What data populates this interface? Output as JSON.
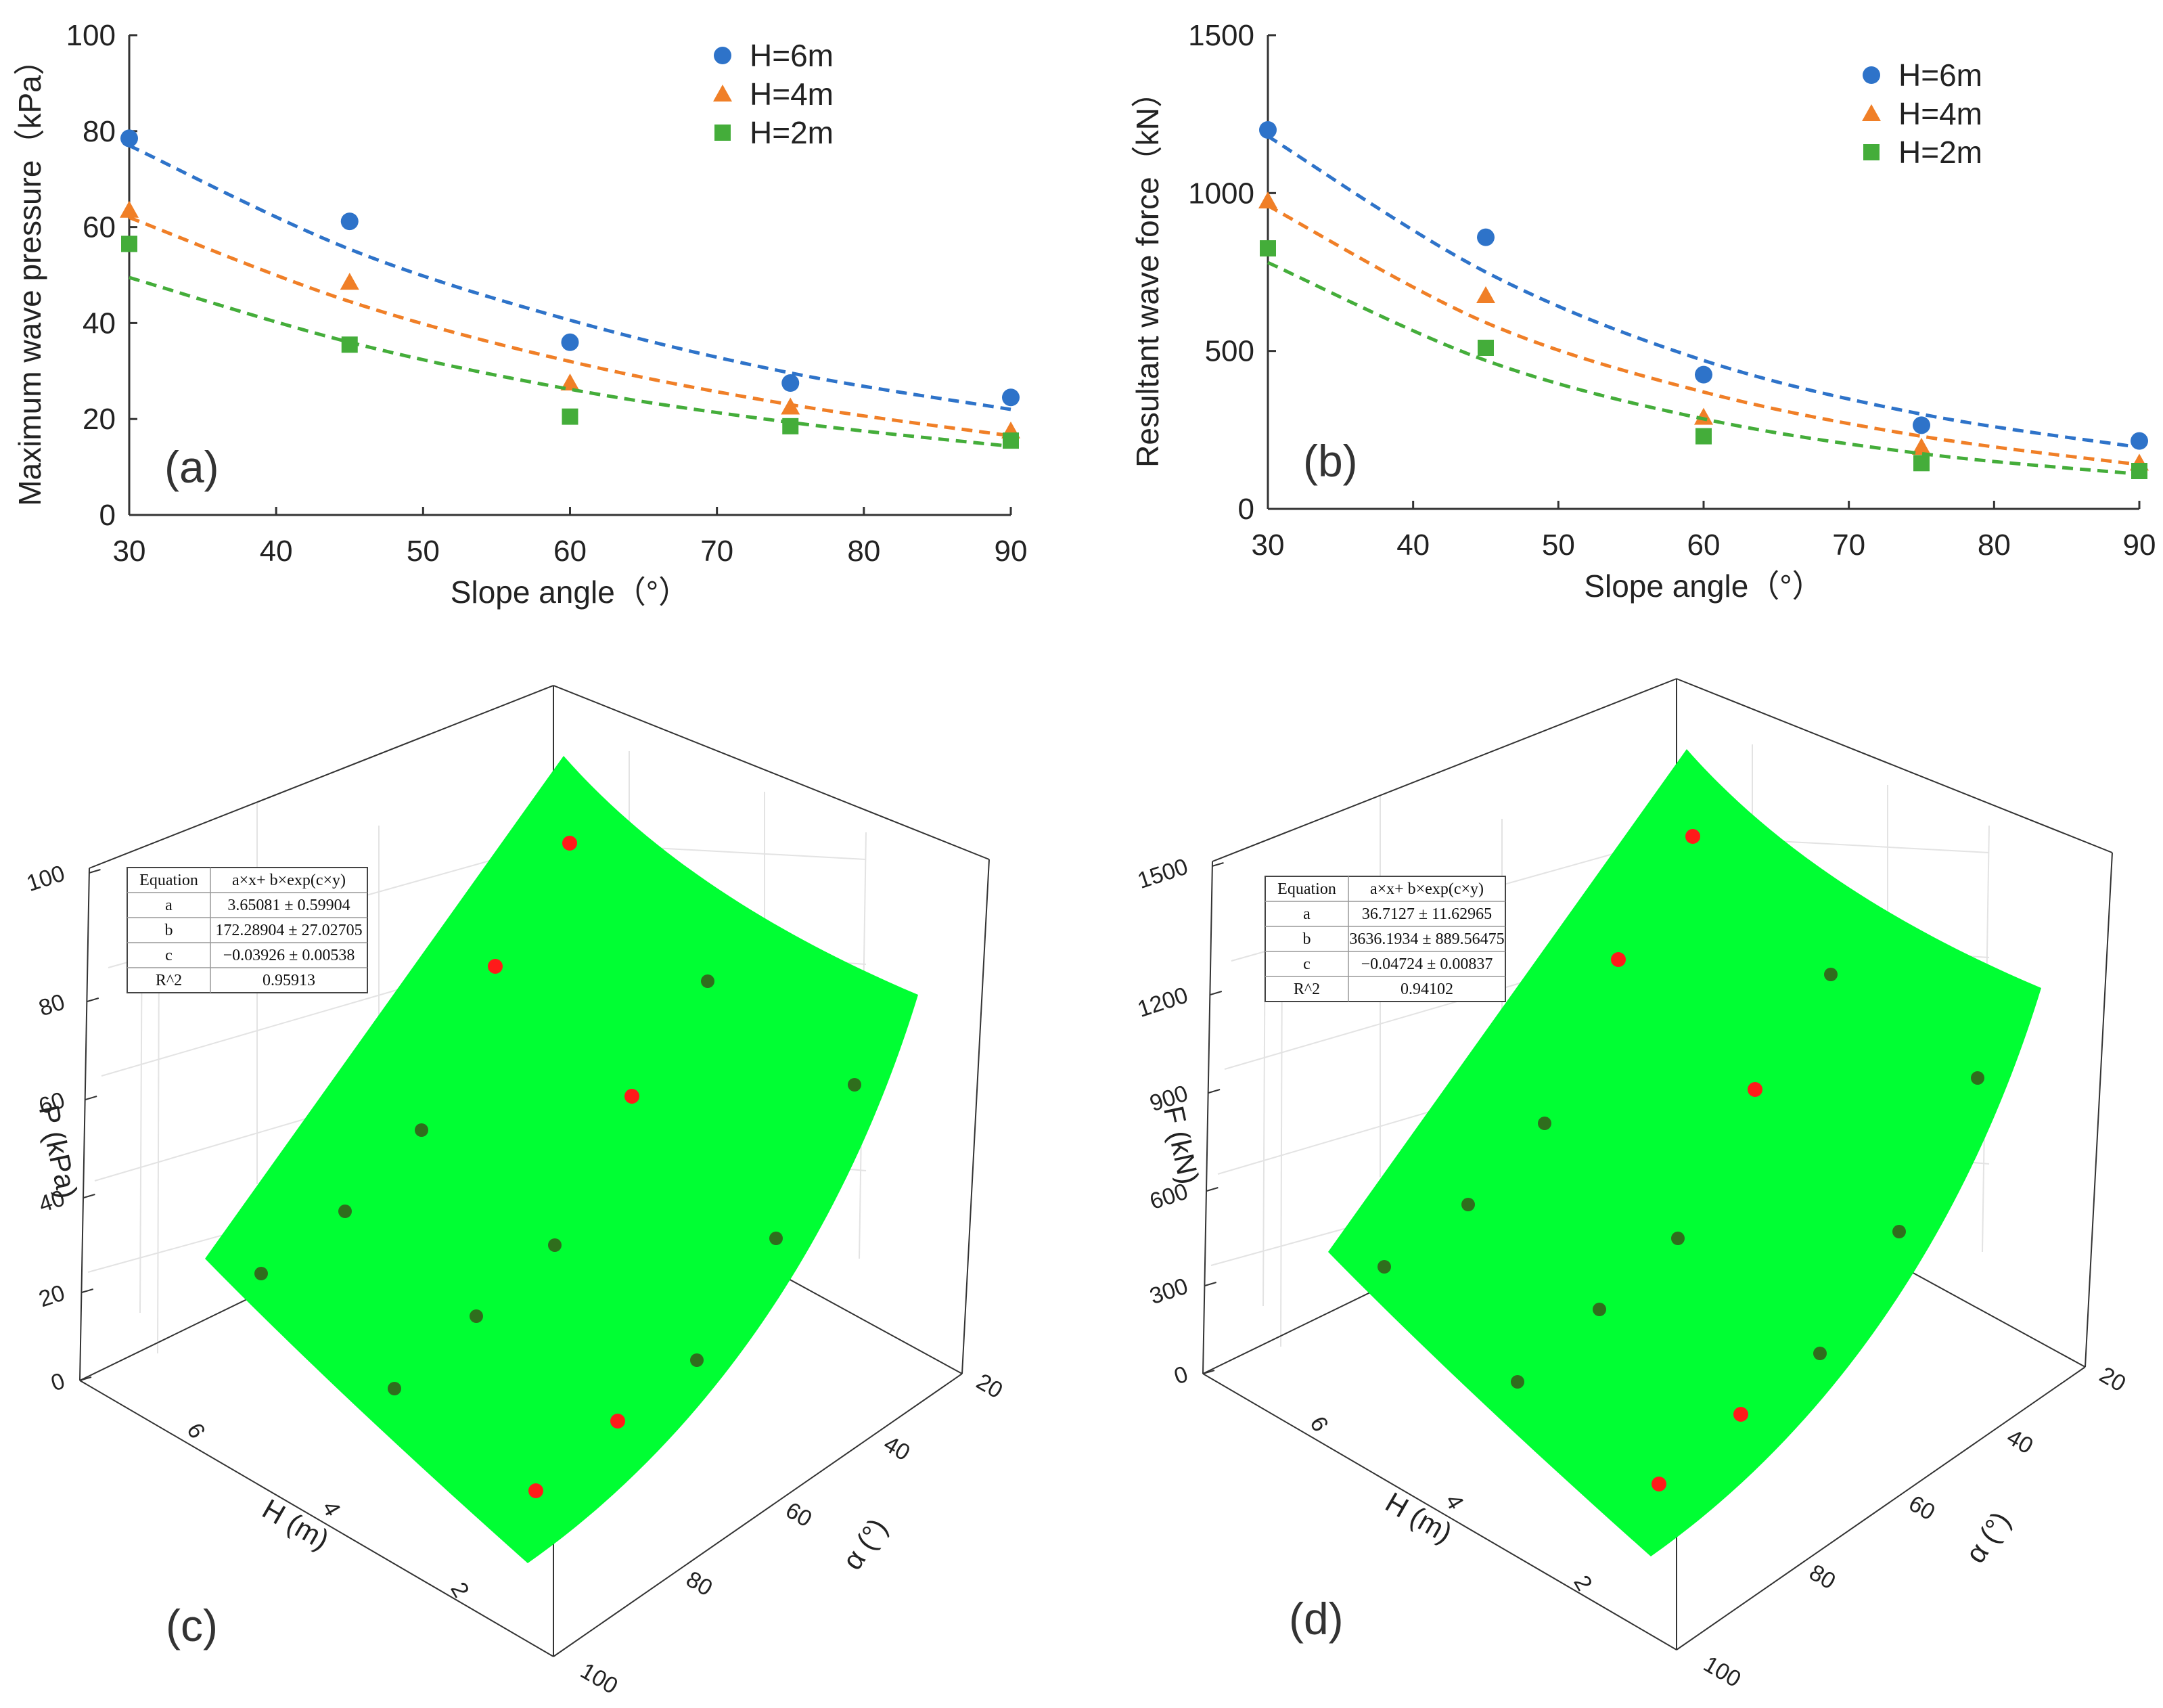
{
  "chart_data": [
    {
      "panel": "(a)",
      "type": "scatter",
      "xlabel": "Slope angle（°）",
      "ylabel": "Maximum wave pressure（kPa）",
      "xlim": [
        30,
        90
      ],
      "ylim": [
        0,
        100
      ],
      "xticks": [
        30,
        40,
        50,
        60,
        70,
        80,
        90
      ],
      "yticks": [
        0,
        20,
        40,
        60,
        80,
        100
      ],
      "fit": {
        "model": "exponential",
        "style": "dashed"
      },
      "series": [
        {
          "name": "H=6m",
          "marker": "circle",
          "color": "#2e73c9",
          "x": [
            30,
            45,
            60,
            75,
            90
          ],
          "y": [
            78.5,
            61.2,
            36.0,
            27.5,
            24.5
          ],
          "fit_y": [
            77,
            55.4,
            40.6,
            29.6,
            22
          ]
        },
        {
          "name": "H=4m",
          "marker": "triangle",
          "color": "#f07f27",
          "x": [
            30,
            45,
            60,
            75,
            90
          ],
          "y": [
            63.5,
            48.5,
            27.5,
            22.5,
            17.5
          ],
          "fit_y": [
            62,
            44.5,
            32,
            23,
            16.5
          ]
        },
        {
          "name": "H=2m",
          "marker": "square",
          "color": "#44ad3a",
          "x": [
            30,
            45,
            60,
            75,
            90
          ],
          "y": [
            56.5,
            35.5,
            20.5,
            18.5,
            15.5
          ],
          "fit_y": [
            49.5,
            36,
            26.2,
            19.3,
            14.3
          ]
        }
      ]
    },
    {
      "panel": "(b)",
      "type": "scatter",
      "xlabel": "Slope angle（°）",
      "ylabel": "Resultant wave force（kN）",
      "xlim": [
        30,
        90
      ],
      "ylim": [
        0,
        1500
      ],
      "xticks": [
        30,
        40,
        50,
        60,
        70,
        80,
        90
      ],
      "yticks": [
        0,
        500,
        1000,
        1500
      ],
      "fit": {
        "model": "exponential",
        "style": "dashed"
      },
      "series": [
        {
          "name": "H=6m",
          "marker": "circle",
          "color": "#2e73c9",
          "x": [
            30,
            45,
            60,
            75,
            90
          ],
          "y": [
            1200,
            860,
            425,
            265,
            215
          ],
          "fit_y": [
            1180,
            750,
            470,
            300,
            195
          ]
        },
        {
          "name": "H=4m",
          "marker": "triangle",
          "color": "#f07f27",
          "x": [
            30,
            45,
            60,
            75,
            90
          ],
          "y": [
            975,
            675,
            290,
            195,
            145
          ],
          "fit_y": [
            960,
            590,
            370,
            230,
            140
          ]
        },
        {
          "name": "H=2m",
          "marker": "square",
          "color": "#44ad3a",
          "x": [
            30,
            45,
            60,
            75,
            90
          ],
          "y": [
            825,
            510,
            230,
            145,
            120
          ],
          "fit_y": [
            780,
            470,
            285,
            175,
            110
          ]
        }
      ]
    },
    {
      "panel": "(c)",
      "type": "surface3d",
      "xlabel": "H (m)",
      "ylabel": "α (°)",
      "zlabel": "P (kPa)",
      "xticks": [
        "6",
        "4",
        "2"
      ],
      "yticks": [
        "20",
        "40",
        "60",
        "80",
        "100"
      ],
      "zticks": [
        "0",
        "20",
        "40",
        "60",
        "80",
        "100"
      ],
      "surface_color": "#00ff33",
      "fit_table": {
        "headers": [
          "Equation",
          "a×x+ b×exp(c×y)"
        ],
        "rows": [
          [
            "a",
            "3.65081 ± 0.59904"
          ],
          [
            "b",
            "172.28904 ± 27.02705"
          ],
          [
            "c",
            "−0.03926 ± 0.00538"
          ],
          [
            "R^2",
            "0.95913"
          ]
        ]
      }
    },
    {
      "panel": "(d)",
      "type": "surface3d",
      "xlabel": "H (m)",
      "ylabel": "α (°)",
      "zlabel": "F (kN)",
      "xticks": [
        "6",
        "4",
        "2"
      ],
      "yticks": [
        "20",
        "40",
        "60",
        "80",
        "100"
      ],
      "zticks": [
        "0",
        "300",
        "600",
        "900",
        "1200",
        "1500"
      ],
      "surface_color": "#00ff33",
      "fit_table": {
        "headers": [
          "Equation",
          "a×x+ b×exp(c×y)"
        ],
        "rows": [
          [
            "a",
            "36.7127 ± 11.62965"
          ],
          [
            "b",
            "3636.1934 ± 889.56475"
          ],
          [
            "c",
            "−0.04724 ± 0.00837"
          ],
          [
            "R^2",
            "0.94102"
          ]
        ]
      }
    }
  ]
}
